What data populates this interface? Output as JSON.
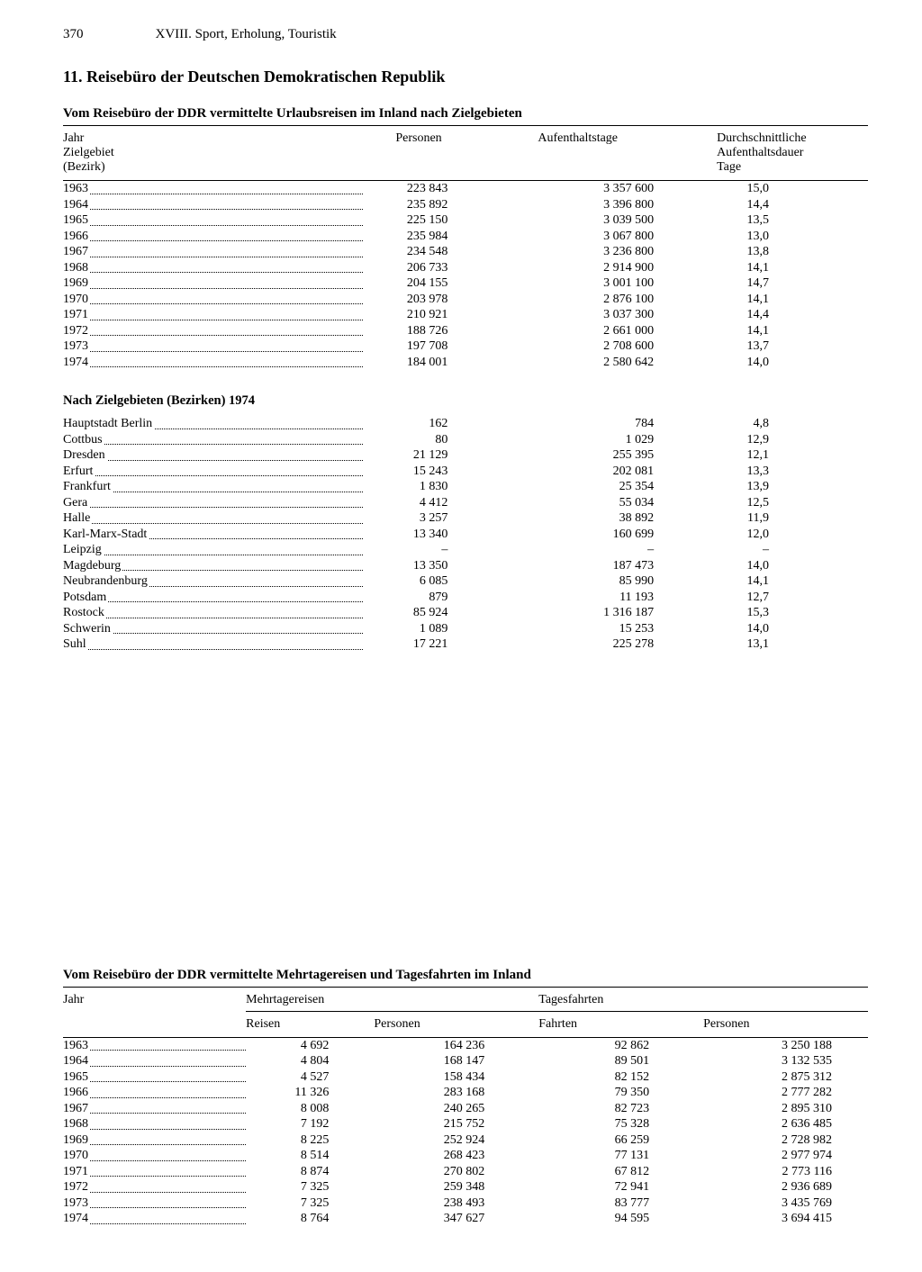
{
  "page_number": "370",
  "chapter_header": "XVIII. Sport, Erholung, Touristik",
  "section_heading": "11. Reisebüro der Deutschen Demokratischen Republik",
  "table1": {
    "title": "Vom Reisebüro der DDR vermittelte Urlaubsreisen im Inland nach Zielgebieten",
    "header_col1_line1": "Jahr",
    "header_col1_line2": "Zielgebiet",
    "header_col1_line3": "(Bezirk)",
    "header_col2": "Personen",
    "header_col3": "Aufenthaltstage",
    "header_col4_line1": "Durchschnittliche",
    "header_col4_line2": "Aufenthaltsdauer",
    "header_col4_line3": "Tage",
    "rows_years": [
      {
        "label": "1963",
        "personen": "223 843",
        "tage": "3 357 600",
        "dauer": "15,0"
      },
      {
        "label": "1964",
        "personen": "235 892",
        "tage": "3 396 800",
        "dauer": "14,4"
      },
      {
        "label": "1965",
        "personen": "225 150",
        "tage": "3 039 500",
        "dauer": "13,5"
      },
      {
        "label": "1966",
        "personen": "235 984",
        "tage": "3 067 800",
        "dauer": "13,0"
      },
      {
        "label": "1967",
        "personen": "234 548",
        "tage": "3 236 800",
        "dauer": "13,8"
      },
      {
        "label": "1968",
        "personen": "206 733",
        "tage": "2 914 900",
        "dauer": "14,1"
      },
      {
        "label": "1969",
        "personen": "204 155",
        "tage": "3 001 100",
        "dauer": "14,7"
      },
      {
        "label": "1970",
        "personen": "203 978",
        "tage": "2 876 100",
        "dauer": "14,1"
      },
      {
        "label": "1971",
        "personen": "210 921",
        "tage": "3 037 300",
        "dauer": "14,4"
      },
      {
        "label": "1972",
        "personen": "188 726",
        "tage": "2 661 000",
        "dauer": "14,1"
      },
      {
        "label": "1973",
        "personen": "197 708",
        "tage": "2 708 600",
        "dauer": "13,7"
      },
      {
        "label": "1974",
        "personen": "184 001",
        "tage": "2 580 642",
        "dauer": "14,0"
      }
    ],
    "sub_heading": "Nach Zielgebieten (Bezirken) 1974",
    "rows_bezirke": [
      {
        "label": "Hauptstadt Berlin",
        "personen": "162",
        "tage": "784",
        "dauer": "4,8"
      },
      {
        "label": "Cottbus",
        "personen": "80",
        "tage": "1 029",
        "dauer": "12,9"
      },
      {
        "label": "Dresden",
        "personen": "21 129",
        "tage": "255 395",
        "dauer": "12,1"
      },
      {
        "label": "Erfurt",
        "personen": "15 243",
        "tage": "202 081",
        "dauer": "13,3"
      },
      {
        "label": "Frankfurt",
        "personen": "1 830",
        "tage": "25 354",
        "dauer": "13,9"
      },
      {
        "label": "Gera",
        "personen": "4 412",
        "tage": "55 034",
        "dauer": "12,5"
      },
      {
        "label": "Halle",
        "personen": "3 257",
        "tage": "38 892",
        "dauer": "11,9"
      },
      {
        "label": "Karl-Marx-Stadt",
        "personen": "13 340",
        "tage": "160 699",
        "dauer": "12,0"
      },
      {
        "label": "Leipzig",
        "personen": "–",
        "tage": "–",
        "dauer": "–"
      },
      {
        "label": "Magdeburg",
        "personen": "13 350",
        "tage": "187 473",
        "dauer": "14,0"
      },
      {
        "label": "Neubrandenburg",
        "personen": "6 085",
        "tage": "85 990",
        "dauer": "14,1"
      },
      {
        "label": "Potsdam",
        "personen": "879",
        "tage": "11 193",
        "dauer": "12,7"
      },
      {
        "label": "Rostock",
        "personen": "85 924",
        "tage": "1 316 187",
        "dauer": "15,3"
      },
      {
        "label": "Schwerin",
        "personen": "1 089",
        "tage": "15 253",
        "dauer": "14,0"
      },
      {
        "label": "Suhl",
        "personen": "17 221",
        "tage": "225 278",
        "dauer": "13,1"
      }
    ]
  },
  "table2": {
    "title": "Vom Reisebüro der DDR vermittelte Mehrtagereisen und Tagesfahrten im Inland",
    "header_col1": "Jahr",
    "header_group1": "Mehrtagereisen",
    "header_group2": "Tagesfahrten",
    "sub_reisen": "Reisen",
    "sub_personen1": "Personen",
    "sub_fahrten": "Fahrten",
    "sub_personen2": "Personen",
    "rows": [
      {
        "label": "1963",
        "reisen": "4 692",
        "mpersonen": "164 236",
        "fahrten": "92 862",
        "tpersonen": "3 250 188"
      },
      {
        "label": "1964",
        "reisen": "4 804",
        "mpersonen": "168 147",
        "fahrten": "89 501",
        "tpersonen": "3 132 535"
      },
      {
        "label": "1965",
        "reisen": "4 527",
        "mpersonen": "158 434",
        "fahrten": "82 152",
        "tpersonen": "2 875 312"
      },
      {
        "label": "1966",
        "reisen": "11 326",
        "mpersonen": "283 168",
        "fahrten": "79 350",
        "tpersonen": "2 777 282"
      },
      {
        "label": "1967",
        "reisen": "8 008",
        "mpersonen": "240 265",
        "fahrten": "82 723",
        "tpersonen": "2 895 310"
      },
      {
        "label": "1968",
        "reisen": "7 192",
        "mpersonen": "215 752",
        "fahrten": "75 328",
        "tpersonen": "2 636 485"
      },
      {
        "label": "1969",
        "reisen": "8 225",
        "mpersonen": "252 924",
        "fahrten": "66 259",
        "tpersonen": "2 728 982"
      },
      {
        "label": "1970",
        "reisen": "8 514",
        "mpersonen": "268 423",
        "fahrten": "77 131",
        "tpersonen": "2 977 974"
      },
      {
        "label": "1971",
        "reisen": "8 874",
        "mpersonen": "270 802",
        "fahrten": "67 812",
        "tpersonen": "2 773 116"
      },
      {
        "label": "1972",
        "reisen": "7 325",
        "mpersonen": "259 348",
        "fahrten": "72 941",
        "tpersonen": "2 936 689"
      },
      {
        "label": "1973",
        "reisen": "7 325",
        "mpersonen": "238 493",
        "fahrten": "83 777",
        "tpersonen": "3 435 769"
      },
      {
        "label": "1974",
        "reisen": "8 764",
        "mpersonen": "347 627",
        "fahrten": "94 595",
        "tpersonen": "3 694 415"
      }
    ]
  }
}
